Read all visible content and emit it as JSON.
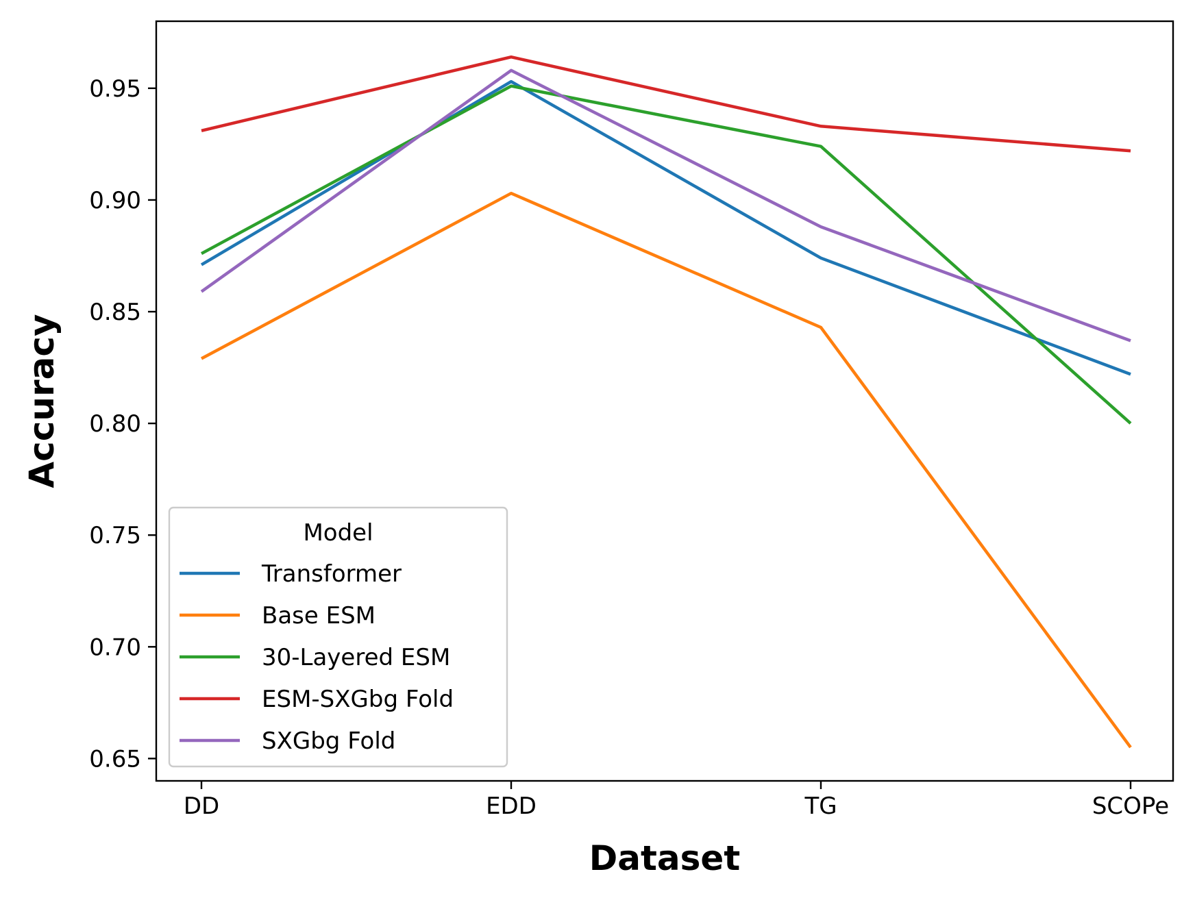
{
  "chart_data": {
    "type": "line",
    "title": "",
    "xlabel": "Dataset",
    "ylabel": "Accuracy",
    "categories": [
      "DD",
      "EDD",
      "TG",
      "SCOPe"
    ],
    "ylim": [
      0.64,
      0.98
    ],
    "yticks": [
      0.65,
      0.7,
      0.75,
      0.8,
      0.85,
      0.9,
      0.95
    ],
    "ytick_labels": [
      "0.65",
      "0.70",
      "0.75",
      "0.80",
      "0.85",
      "0.90",
      "0.95"
    ],
    "grid": false,
    "legend": {
      "title": "Model",
      "placement": "lower-left"
    },
    "series": [
      {
        "name": "Transformer",
        "color": "#1f77b4",
        "values": [
          0.871,
          0.953,
          0.874,
          0.822
        ]
      },
      {
        "name": "Base ESM",
        "color": "#ff7f0e",
        "values": [
          0.829,
          0.903,
          0.843,
          0.655
        ]
      },
      {
        "name": "30-Layered ESM",
        "color": "#2ca02c",
        "values": [
          0.876,
          0.951,
          0.924,
          0.8
        ]
      },
      {
        "name": "ESM-SXGbg Fold",
        "color": "#d62728",
        "values": [
          0.931,
          0.964,
          0.933,
          0.922
        ]
      },
      {
        "name": "SXGbg Fold",
        "color": "#9467bd",
        "values": [
          0.859,
          0.958,
          0.888,
          0.837
        ]
      }
    ]
  }
}
